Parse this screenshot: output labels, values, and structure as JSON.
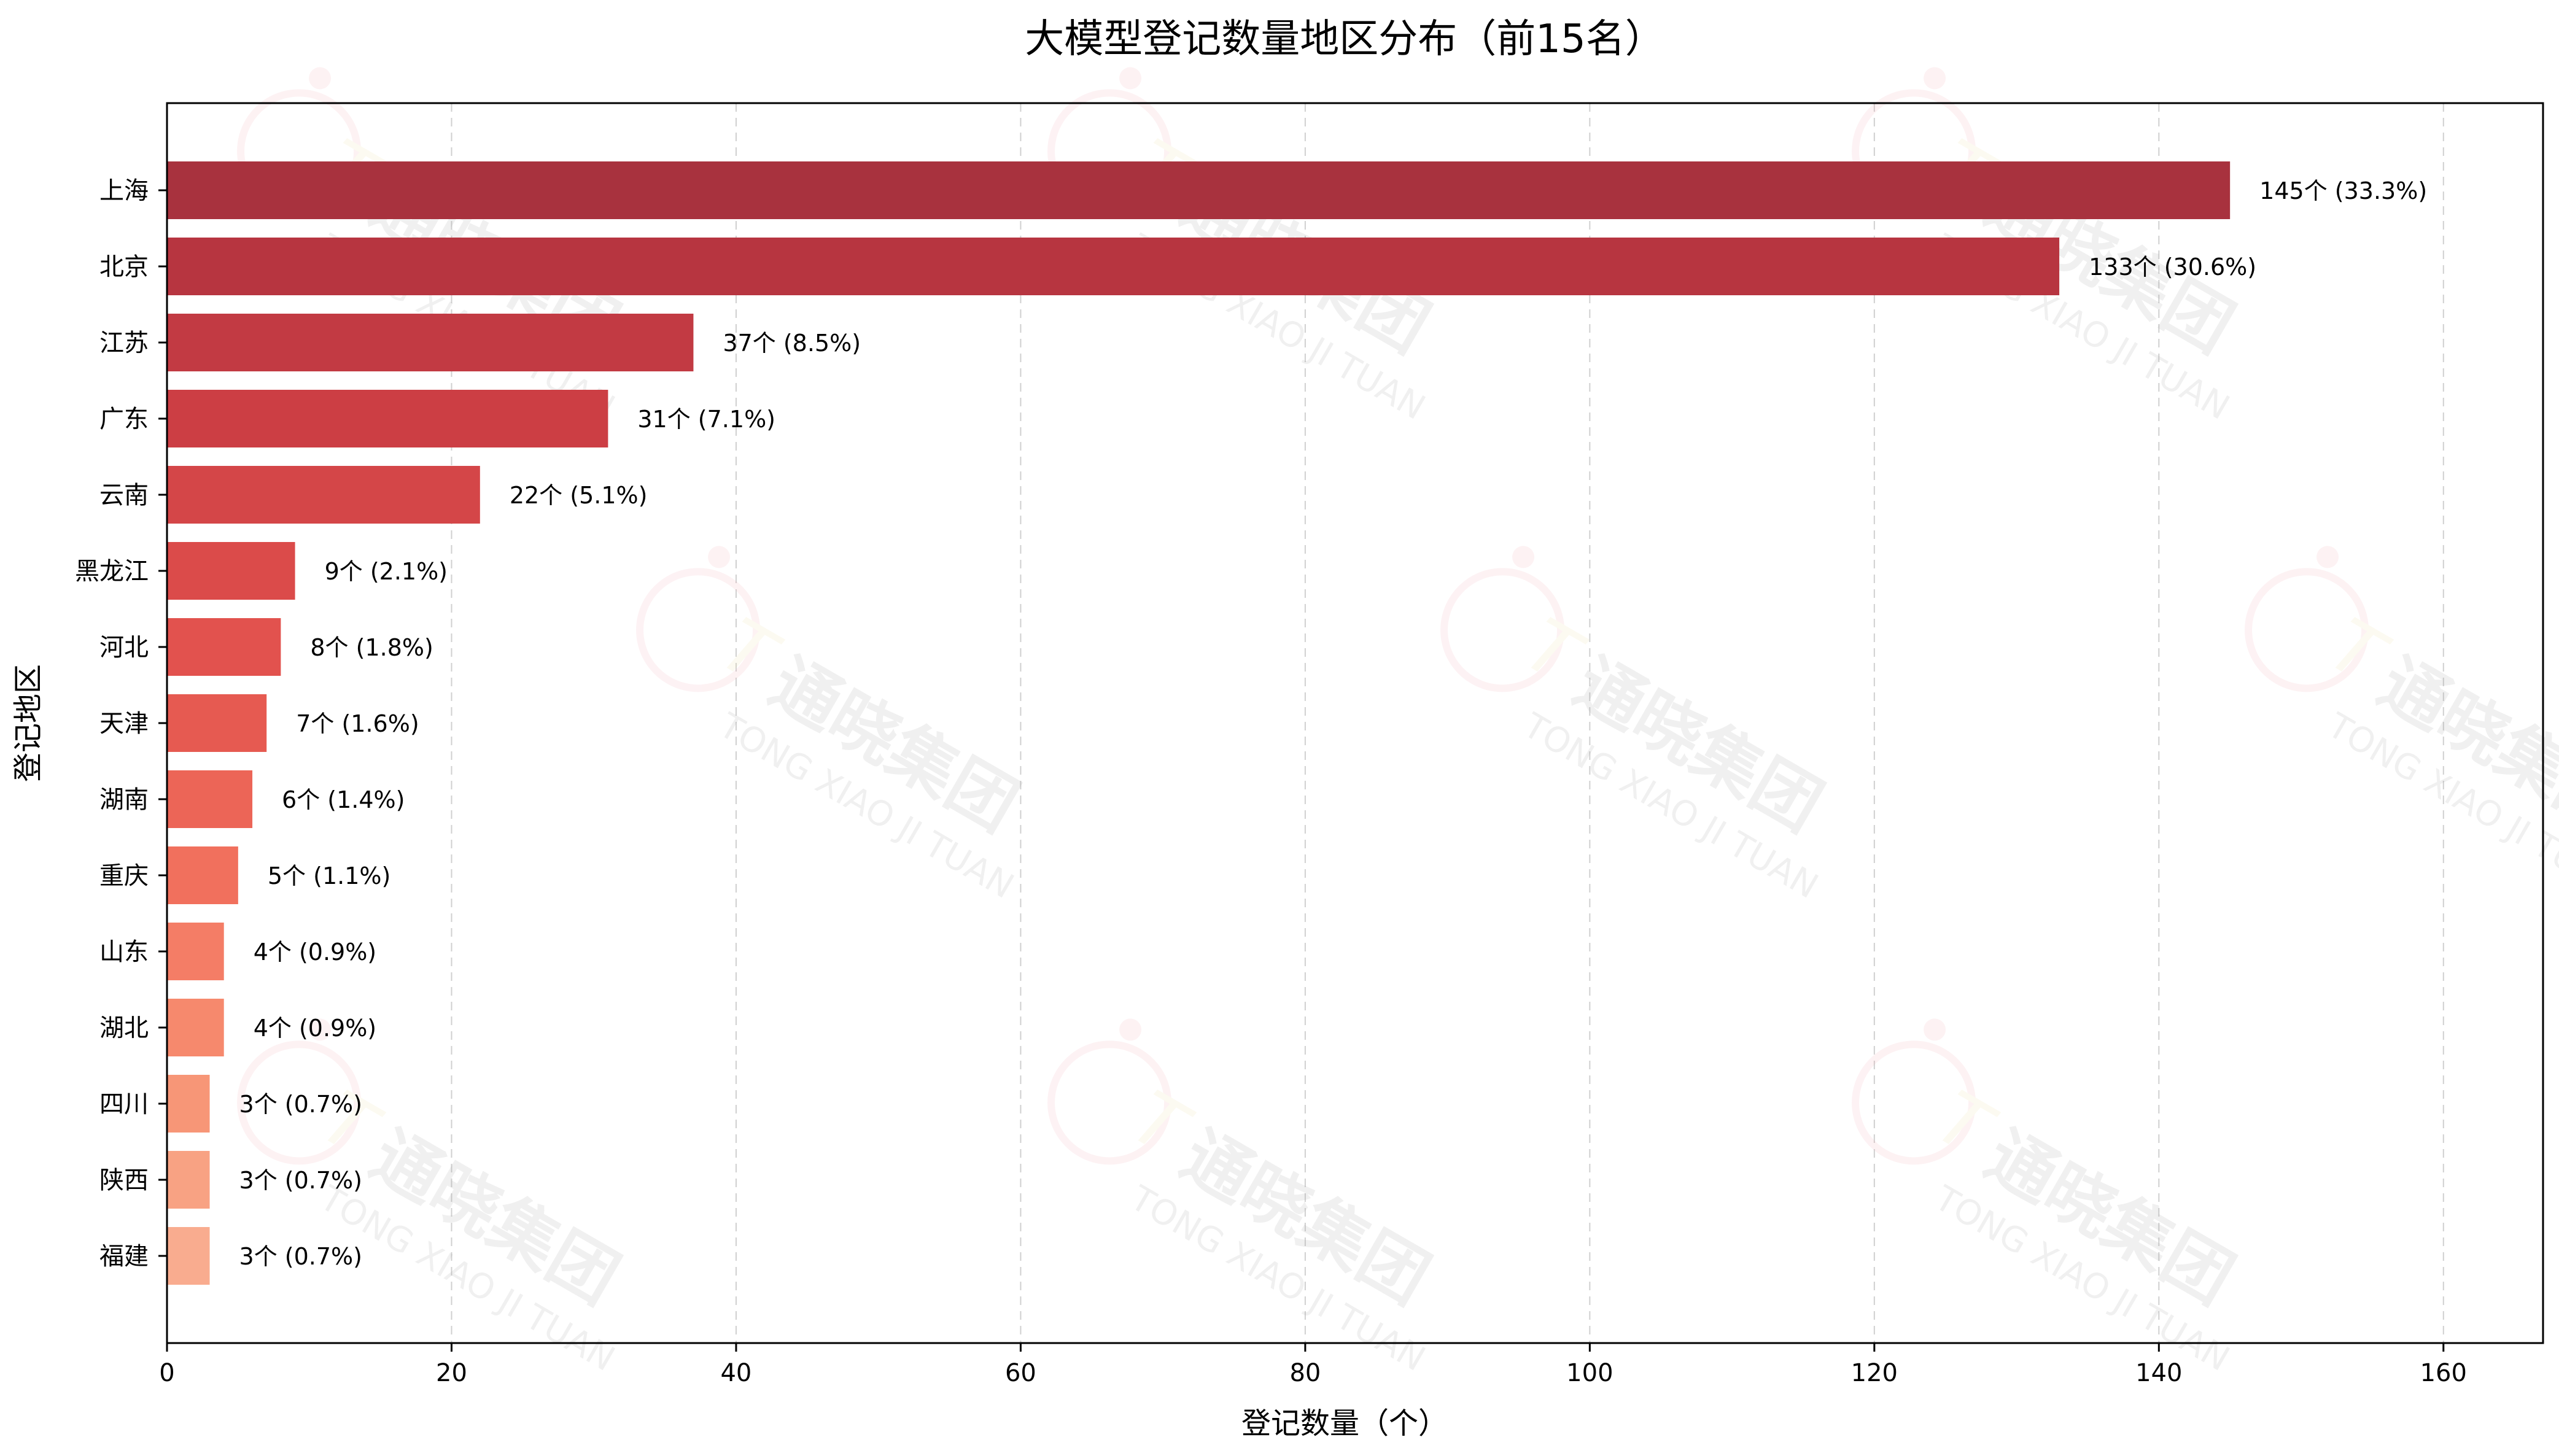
{
  "chart_data": {
    "type": "bar",
    "orientation": "horizontal",
    "title": "大模型登记数量地区分布（前15名）",
    "xlabel": "登记数量（个）",
    "ylabel": "登记地区",
    "xlim": [
      0,
      167
    ],
    "xticks": [
      0,
      20,
      40,
      60,
      80,
      100,
      120,
      140,
      160
    ],
    "grid": "vertical dashed",
    "categories": [
      "上海",
      "北京",
      "江苏",
      "广东",
      "云南",
      "黑龙江",
      "河北",
      "天津",
      "湖南",
      "重庆",
      "山东",
      "湖北",
      "四川",
      "陕西",
      "福建"
    ],
    "values": [
      145,
      133,
      37,
      31,
      22,
      9,
      8,
      7,
      6,
      5,
      4,
      4,
      3,
      3,
      3
    ],
    "data_labels": [
      "145个 (33.3%)",
      "133个 (30.6%)",
      "37个 (8.5%)",
      "31个 (7.1%)",
      "22个 (5.1%)",
      "9个 (2.1%)",
      "8个 (1.8%)",
      "7个 (1.6%)",
      "6个 (1.4%)",
      "5个 (1.1%)",
      "4个 (0.9%)",
      "4个 (0.9%)",
      "3个 (0.7%)",
      "3个 (0.7%)",
      "3个 (0.7%)"
    ],
    "colors": [
      "#a8323e",
      "#b73540",
      "#c23a43",
      "#cc3e44",
      "#d44648",
      "#db4b4a",
      "#e2524e",
      "#e65a51",
      "#ec6557",
      "#f1705d",
      "#f47d66",
      "#f6896d",
      "#f79677",
      "#f8a283",
      "#f9ac8f"
    ]
  },
  "watermark": {
    "cn": "通晓集团",
    "en": "TONG XIAO JI TUAN",
    "colors": [
      "#f4a6b0",
      "#efe3a0"
    ]
  }
}
